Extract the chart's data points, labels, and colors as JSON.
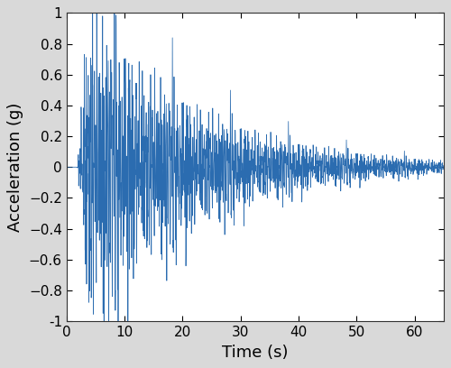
{
  "xlabel": "Time (s)",
  "ylabel": "Acceleration (g)",
  "xlim": [
    0,
    65
  ],
  "ylim": [
    -1,
    1
  ],
  "xticks": [
    0,
    10,
    20,
    30,
    40,
    50,
    60
  ],
  "ytick_labels": [
    "−1",
    "−0.8",
    "−0.6",
    "−0.4",
    "−0.2",
    "0",
    "0.2",
    "0.4",
    "0.6",
    "0.8",
    "1"
  ],
  "ytick_vals": [
    -1.0,
    -0.8,
    -0.6,
    -0.4,
    -0.2,
    0.0,
    0.2,
    0.4,
    0.6,
    0.8,
    1.0
  ],
  "line_color": "#2b6cb0",
  "line_width": 0.55,
  "background_color": "#ffffff",
  "fig_facecolor": "#d9d9d9",
  "dt": 0.02,
  "duration": 64.98,
  "seed": 2023,
  "xlabel_fontsize": 13,
  "ylabel_fontsize": 13,
  "tick_fontsize": 11
}
